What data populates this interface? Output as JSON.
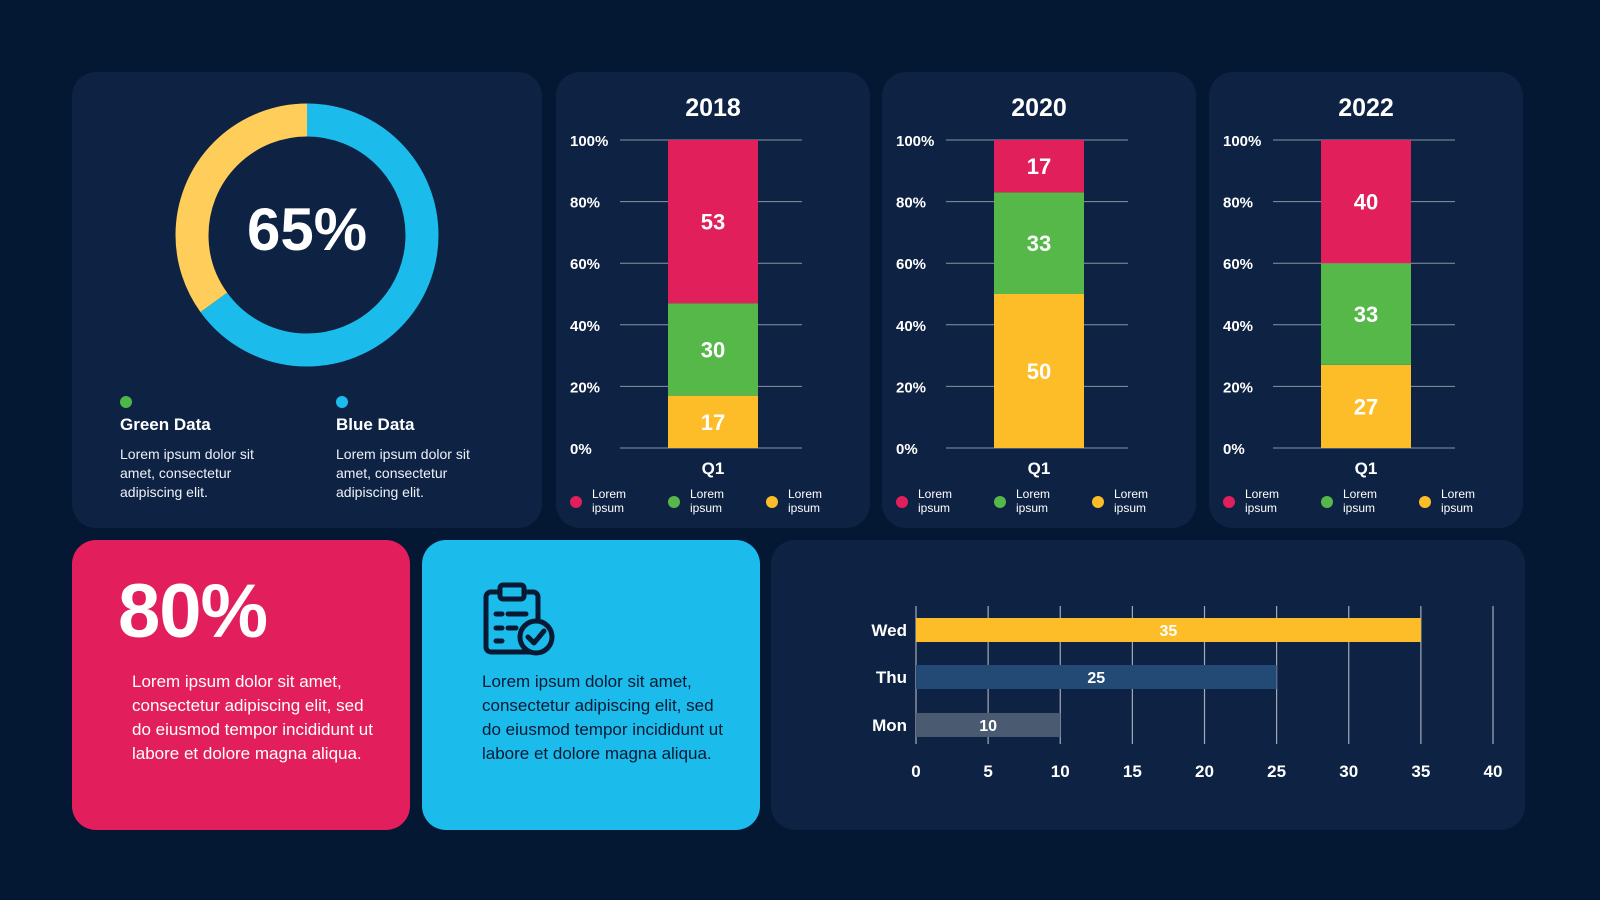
{
  "donut": {
    "center_label": "65%",
    "legend": [
      {
        "title": "Green Data",
        "description": "Lorem ipsum dolor sit amet, consectetur adipiscing elit.",
        "color": "#4db848"
      },
      {
        "title": "Blue Data",
        "description": "Lorem ipsum dolor sit amet, consectetur adipiscing elit.",
        "color": "#1bbcec"
      }
    ]
  },
  "pink_card": {
    "value": "80%",
    "text": "Lorem ipsum dolor sit amet, consectetur adipiscing elit, sed do eiusmod tempor incididunt ut labore et dolore magna aliqua.",
    "color": "#e21f5c"
  },
  "blue_card": {
    "icon": "clipboard-check-icon",
    "text": "Lorem ipsum dolor sit amet, consectetur adipiscing elit, sed do eiusmod tempor incididunt ut labore et dolore magna aliqua.",
    "color": "#1bbcec"
  },
  "chart_data": [
    {
      "type": "pie",
      "variant": "donut",
      "title": "",
      "slices": [
        {
          "value": 65,
          "color": "#1bbcec"
        },
        {
          "value": 35,
          "color": "#ffcd59"
        }
      ]
    },
    {
      "type": "bar",
      "stacked": true,
      "title": "2018",
      "categories": [
        "Q1"
      ],
      "ylim": [
        0,
        100
      ],
      "yticks": [
        "0%",
        "20%",
        "40%",
        "60%",
        "80%",
        "100%"
      ],
      "series": [
        {
          "name": "Lorem ipsum",
          "values": [
            17
          ],
          "color": "#fdbd28"
        },
        {
          "name": "Lorem ipsum",
          "values": [
            30
          ],
          "color": "#56b848"
        },
        {
          "name": "Lorem ipsum",
          "values": [
            53
          ],
          "color": "#e01f5b"
        }
      ]
    },
    {
      "type": "bar",
      "stacked": true,
      "title": "2020",
      "categories": [
        "Q1"
      ],
      "ylim": [
        0,
        100
      ],
      "yticks": [
        "0%",
        "20%",
        "40%",
        "60%",
        "80%",
        "100%"
      ],
      "series": [
        {
          "name": "Lorem ipsum",
          "values": [
            50
          ],
          "color": "#fdbd28"
        },
        {
          "name": "Lorem ipsum",
          "values": [
            33
          ],
          "color": "#56b848"
        },
        {
          "name": "Lorem ipsum",
          "values": [
            17
          ],
          "color": "#e01f5b"
        }
      ]
    },
    {
      "type": "bar",
      "stacked": true,
      "title": "2022",
      "categories": [
        "Q1"
      ],
      "ylim": [
        0,
        100
      ],
      "yticks": [
        "0%",
        "20%",
        "40%",
        "60%",
        "80%",
        "100%"
      ],
      "series": [
        {
          "name": "Lorem ipsum",
          "values": [
            27
          ],
          "color": "#fdbd28"
        },
        {
          "name": "Lorem ipsum",
          "values": [
            33
          ],
          "color": "#56b848"
        },
        {
          "name": "Lorem ipsum",
          "values": [
            40
          ],
          "color": "#e01f5b"
        }
      ]
    },
    {
      "type": "bar",
      "orientation": "horizontal",
      "title": "",
      "categories": [
        "Wed",
        "Thu",
        "Mon"
      ],
      "values": [
        35,
        25,
        10
      ],
      "colors": [
        "#fdbd28",
        "#234a74",
        "#4a5a70"
      ],
      "xlim": [
        0,
        40
      ],
      "xticks": [
        0,
        5,
        10,
        15,
        20,
        25,
        30,
        35,
        40
      ],
      "grid": true
    }
  ],
  "legend_colors_order": [
    "#e01f5b",
    "#56b848",
    "#fdbd28"
  ]
}
